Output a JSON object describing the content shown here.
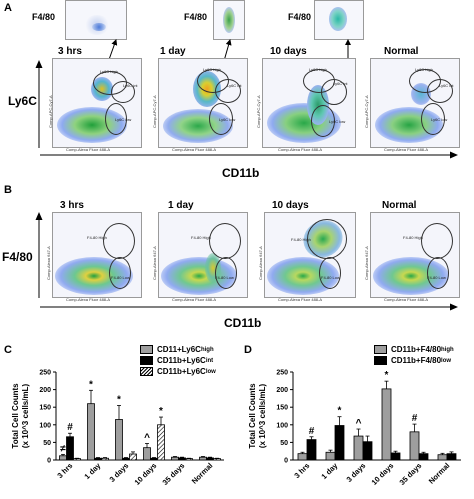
{
  "panel_a": {
    "letter": "A",
    "y_marker": "Ly6C",
    "x_marker": "CD11b",
    "inset_label": "F4/80",
    "plot_x_axis": "Comp-Alexa Fluor 488-A",
    "plot_y_axis": "Comp-APC-Cy7-A",
    "timepoints": [
      "3 hrs",
      "1 day",
      "10 days",
      "Normal"
    ],
    "gates": {
      "high": "Ly6C high",
      "int": "Ly6C int",
      "low": "Ly6C low"
    }
  },
  "panel_b": {
    "letter": "B",
    "y_marker": "F4/80",
    "x_marker": "CD11b",
    "plot_x_axis": "Comp-Alexa Fluor 488-A",
    "plot_y_axis": "Comp-Alexa 647-A",
    "timepoints": [
      "3 hrs",
      "1 day",
      "10 days",
      "Normal"
    ],
    "gates": {
      "high": "F4-80 High",
      "low": "F4-80 Low"
    }
  },
  "panel_c": {
    "letter": "C"
  },
  "panel_d": {
    "letter": "D"
  },
  "colors": {
    "gray": "#9e9e9e",
    "black": "#000000"
  },
  "chart_data": [
    {
      "type": "bar",
      "ylabel": "Total Cell Counts\n(x 10^3 cells/mL)",
      "ylim": [
        0,
        250
      ],
      "yticks": [
        0,
        50,
        100,
        150,
        200,
        250
      ],
      "categories": [
        "3 hrs",
        "1 day",
        "3 days",
        "10 days",
        "35 days",
        "Normal"
      ],
      "series": [
        {
          "name": "CD11+Ly6C",
          "sup": "high",
          "fill": "gray",
          "values": [
            12,
            160,
            115,
            35,
            8,
            8
          ],
          "errors": [
            4,
            38,
            40,
            12,
            2,
            2
          ]
        },
        {
          "name": "CD11b+Ly6C",
          "sup": "int",
          "fill": "black",
          "values": [
            66,
            5,
            5,
            5,
            6,
            6
          ],
          "errors": [
            10,
            2,
            2,
            2,
            2,
            2
          ]
        },
        {
          "name": "CD11b+Ly6C",
          "sup": "low",
          "fill": "hatch",
          "values": [
            4,
            5,
            17,
            100,
            4,
            4
          ],
          "errors": [
            1,
            2,
            6,
            22,
            1,
            1
          ]
        }
      ],
      "annotations": [
        {
          "text": "#",
          "cat": 0,
          "series": 1
        },
        {
          "text": "≠",
          "cat": 0,
          "series": 0
        },
        {
          "text": "*",
          "cat": 1,
          "series": 0
        },
        {
          "text": "*",
          "cat": 2,
          "series": 0
        },
        {
          "text": "^",
          "cat": 3,
          "series": 0
        },
        {
          "text": "*",
          "cat": 3,
          "series": 2
        }
      ]
    },
    {
      "type": "bar",
      "ylabel": "Total Cell Counts\n(x 10^3 cells/mL)",
      "ylim": [
        0,
        250
      ],
      "yticks": [
        0,
        50,
        100,
        150,
        200,
        250
      ],
      "categories": [
        "3 hrs",
        "1 day",
        "3 days",
        "10 days",
        "35 days",
        "Normal"
      ],
      "series": [
        {
          "name": "CD11b+F4/80",
          "sup": "high",
          "fill": "gray",
          "values": [
            18,
            22,
            68,
            202,
            80,
            15
          ],
          "errors": [
            4,
            6,
            20,
            22,
            22,
            4
          ]
        },
        {
          "name": "CD11b+F4/80",
          "sup": "low",
          "fill": "black",
          "values": [
            58,
            98,
            52,
            20,
            18,
            18
          ],
          "errors": [
            8,
            25,
            16,
            5,
            4,
            5
          ]
        }
      ],
      "annotations": [
        {
          "text": "#",
          "cat": 0,
          "series": 1
        },
        {
          "text": "*",
          "cat": 1,
          "series": 1
        },
        {
          "text": "^",
          "cat": 2,
          "series": 0
        },
        {
          "text": "*",
          "cat": 3,
          "series": 0
        },
        {
          "text": "#",
          "cat": 4,
          "series": 0
        }
      ]
    }
  ]
}
